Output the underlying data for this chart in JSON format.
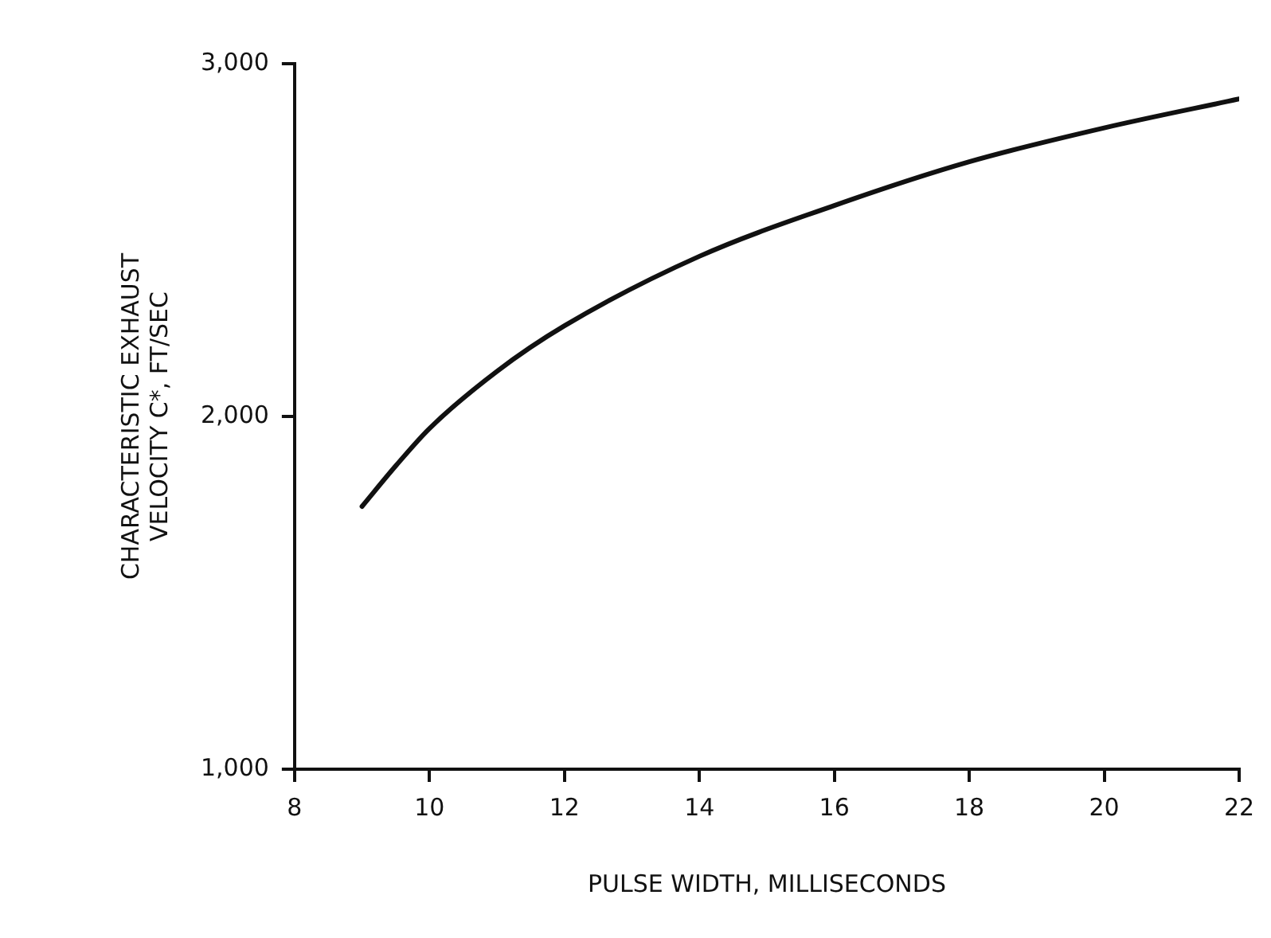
{
  "chart_data": {
    "type": "line",
    "xlabel": "PULSE WIDTH, MILLISECONDS",
    "ylabel": "CHARACTERISTIC EXHAUST\nVELOCITY C*, FT/SEC",
    "x": [
      9,
      9.5,
      10,
      11,
      12,
      14,
      16,
      18,
      20,
      22
    ],
    "series": [
      {
        "color": "#111111",
        "values": [
          1745,
          1860,
          1966,
          2128,
          2257,
          2454,
          2598,
          2722,
          2818,
          2900
        ]
      }
    ],
    "xlim": [
      8,
      22
    ],
    "xticks": [
      8,
      10,
      12,
      14,
      16,
      18,
      20,
      22
    ],
    "ylim": [
      1000,
      3000
    ],
    "yticks": [
      {
        "value": 1000,
        "label": "1,000"
      },
      {
        "value": 2000,
        "label": "2,000"
      },
      {
        "value": 3000,
        "label": "3,000"
      }
    ],
    "grid": false,
    "legend": false,
    "marker": "none",
    "line_style": "solid"
  }
}
